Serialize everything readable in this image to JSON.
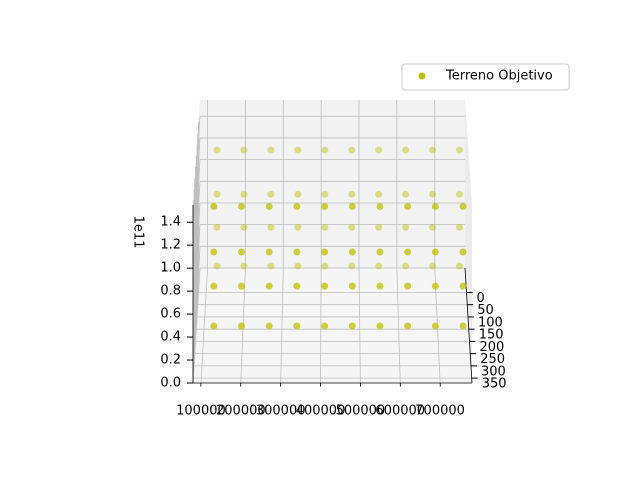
{
  "chart_data": {
    "type": "scatter3d",
    "series": [
      {
        "name": "Terreno Objetivo",
        "color": "#bfbf00",
        "x": [
          130000,
          200000,
          270000,
          340000,
          410000,
          480000,
          550000,
          620000,
          690000,
          760000,
          130000,
          200000,
          270000,
          340000,
          410000,
          480000,
          550000,
          620000,
          690000,
          760000,
          130000,
          200000,
          270000,
          340000,
          410000,
          480000,
          550000,
          620000,
          690000,
          760000,
          130000,
          200000,
          270000,
          340000,
          410000,
          480000,
          550000,
          620000,
          690000,
          760000,
          130000,
          200000,
          270000,
          340000,
          410000,
          480000,
          550000,
          620000,
          690000,
          760000,
          130000,
          200000,
          270000,
          340000,
          410000,
          480000,
          550000,
          620000,
          690000,
          760000,
          130000,
          200000,
          270000,
          340000,
          410000,
          480000,
          550000,
          620000,
          690000,
          760000,
          130000,
          200000,
          270000,
          340000,
          410000,
          480000,
          550000,
          620000,
          690000,
          760000
        ],
        "y": [
          50,
          50,
          50,
          50,
          50,
          50,
          50,
          50,
          50,
          50,
          300,
          300,
          300,
          300,
          300,
          300,
          300,
          300,
          300,
          300,
          50,
          50,
          50,
          50,
          50,
          50,
          50,
          50,
          50,
          50,
          300,
          300,
          300,
          300,
          300,
          300,
          300,
          300,
          300,
          300,
          50,
          50,
          50,
          50,
          50,
          50,
          50,
          50,
          50,
          50,
          300,
          300,
          300,
          300,
          300,
          300,
          300,
          300,
          300,
          300,
          50,
          50,
          50,
          50,
          50,
          50,
          50,
          50,
          50,
          50,
          300,
          300,
          300,
          300,
          300,
          300,
          300,
          300,
          300,
          300
        ],
        "z": [
          0.35,
          0.35,
          0.35,
          0.35,
          0.35,
          0.35,
          0.35,
          0.35,
          0.35,
          0.35,
          0.35,
          0.35,
          0.35,
          0.35,
          0.35,
          0.35,
          0.35,
          0.35,
          0.35,
          0.35,
          0.7,
          0.7,
          0.7,
          0.7,
          0.7,
          0.7,
          0.7,
          0.7,
          0.7,
          0.7,
          0.7,
          0.7,
          0.7,
          0.7,
          0.7,
          0.7,
          0.7,
          0.7,
          0.7,
          0.7,
          1.0,
          1.0,
          1.0,
          1.0,
          1.0,
          1.0,
          1.0,
          1.0,
          1.0,
          1.0,
          1.0,
          1.0,
          1.0,
          1.0,
          1.0,
          1.0,
          1.0,
          1.0,
          1.0,
          1.0,
          1.4,
          1.4,
          1.4,
          1.4,
          1.4,
          1.4,
          1.4,
          1.4,
          1.4,
          1.4,
          1.4,
          1.4,
          1.4,
          1.4,
          1.4,
          1.4,
          1.4,
          1.4,
          1.4,
          1.4
        ]
      }
    ],
    "xlim": [
      80000,
      780000
    ],
    "xticks": [
      100000,
      200000,
      300000,
      400000,
      500000,
      600000,
      700000
    ],
    "ylim": [
      -100,
      370
    ],
    "yticks": [
      0,
      50,
      100,
      150,
      200,
      250,
      300,
      350
    ],
    "zlim": [
      0,
      1.55
    ],
    "zticks": [
      0.0,
      0.2,
      0.4,
      0.6,
      0.8,
      1.0,
      1.2,
      1.4
    ],
    "z_offset_label": "1e11",
    "grid": true,
    "legend": "upper right"
  }
}
